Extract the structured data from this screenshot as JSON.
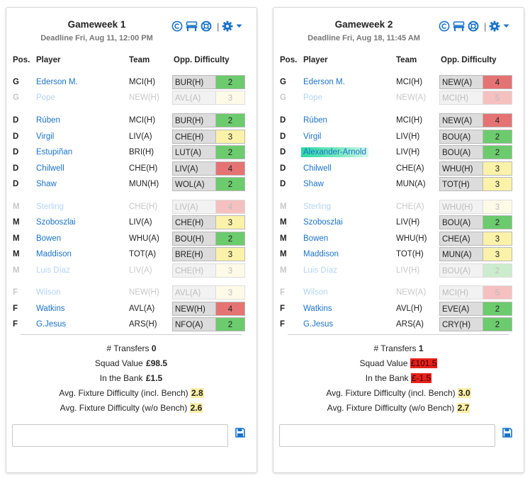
{
  "colors": {
    "accent": "#1a73c9",
    "difficulty": {
      "2": "#6ccb6d",
      "3": "#fbf2a9",
      "4": "#e57373"
    },
    "difficulty_bench": {
      "2": "#cdeccd",
      "3": "#fdfbe7",
      "4": "#f4c0c0"
    },
    "highlight_yellow": "#fbeea6",
    "highlight_red": "#e8221b"
  },
  "icons": [
    "copyright-icon",
    "bench-icon",
    "lifebuoy-icon",
    "gear-icon",
    "caret-down-icon",
    "save-icon"
  ],
  "columns": {
    "pos": "Pos.",
    "player": "Player",
    "team": "Team",
    "opp": "Opp. Difficulty"
  },
  "gameweeks": [
    {
      "title": "Gameweek 1",
      "deadline": "Deadline Fri, Aug 11, 12:00 PM",
      "players": [
        {
          "pos": "G",
          "name": "Ederson M.",
          "team": "MCI(H)",
          "opp": "BUR(H)",
          "diff": 2,
          "bench": false
        },
        {
          "pos": "G",
          "name": "Pope",
          "team": "NEW(H)",
          "opp": "AVL(A)",
          "diff": 3,
          "bench": true
        },
        {
          "pos": "D",
          "name": "Rúben",
          "team": "MCI(H)",
          "opp": "BUR(H)",
          "diff": 2,
          "bench": false
        },
        {
          "pos": "D",
          "name": "Virgil",
          "team": "LIV(A)",
          "opp": "CHE(H)",
          "diff": 3,
          "bench": false
        },
        {
          "pos": "D",
          "name": "Estupiñan",
          "team": "BRI(H)",
          "opp": "LUT(A)",
          "diff": 2,
          "bench": false
        },
        {
          "pos": "D",
          "name": "Chilwell",
          "team": "CHE(H)",
          "opp": "LIV(A)",
          "diff": 4,
          "bench": false
        },
        {
          "pos": "D",
          "name": "Shaw",
          "team": "MUN(H)",
          "opp": "WOL(A)",
          "diff": 2,
          "bench": false
        },
        {
          "pos": "M",
          "name": "Sterling",
          "team": "CHE(H)",
          "opp": "LIV(A)",
          "diff": 4,
          "bench": true
        },
        {
          "pos": "M",
          "name": "Szoboszlai",
          "team": "LIV(A)",
          "opp": "CHE(H)",
          "diff": 3,
          "bench": false
        },
        {
          "pos": "M",
          "name": "Bowen",
          "team": "WHU(A)",
          "opp": "BOU(H)",
          "diff": 2,
          "bench": false
        },
        {
          "pos": "M",
          "name": "Maddison",
          "team": "TOT(A)",
          "opp": "BRE(H)",
          "diff": 3,
          "bench": false
        },
        {
          "pos": "M",
          "name": "Luis Díaz",
          "team": "LIV(A)",
          "opp": "CHE(H)",
          "diff": 3,
          "bench": true
        },
        {
          "pos": "F",
          "name": "Wilson",
          "team": "NEW(H)",
          "opp": "AVL(A)",
          "diff": 3,
          "bench": true
        },
        {
          "pos": "F",
          "name": "Watkins",
          "team": "AVL(A)",
          "opp": "NEW(H)",
          "diff": 4,
          "bench": false
        },
        {
          "pos": "F",
          "name": "G.Jesus",
          "team": "ARS(H)",
          "opp": "NFO(A)",
          "diff": 2,
          "bench": false
        }
      ],
      "transfers_label": "# Transfers",
      "transfers": "0",
      "squad_label": "Squad Value",
      "squad_value": "£98.5",
      "squad_flag": "",
      "bank_label": "In the Bank",
      "bank": "£1.5",
      "bank_flag": "",
      "avg_incl_label": "Avg. Fixture Difficulty (incl. Bench)",
      "avg_incl": "2.8",
      "avg_wo_label": "Avg. Fixture Difficulty (w/o Bench)",
      "avg_wo": "2.6",
      "notes": ""
    },
    {
      "title": "Gameweek 2",
      "deadline": "Deadline Fri, Aug 18, 11:45 AM",
      "players": [
        {
          "pos": "G",
          "name": "Ederson M.",
          "team": "MCI(H)",
          "opp": "NEW(A)",
          "diff": 4,
          "bench": false
        },
        {
          "pos": "G",
          "name": "Pope",
          "team": "NEW(A)",
          "opp": "MCI(H)",
          "diff": 5,
          "bench": true
        },
        {
          "pos": "D",
          "name": "Rúben",
          "team": "MCI(H)",
          "opp": "NEW(A)",
          "diff": 4,
          "bench": false
        },
        {
          "pos": "D",
          "name": "Virgil",
          "team": "LIV(H)",
          "opp": "BOU(A)",
          "diff": 2,
          "bench": false
        },
        {
          "pos": "D",
          "name": "Alexander-Arnold",
          "team": "LIV(H)",
          "opp": "BOU(A)",
          "diff": 2,
          "bench": false,
          "highlight": true
        },
        {
          "pos": "D",
          "name": "Chilwell",
          "team": "CHE(A)",
          "opp": "WHU(H)",
          "diff": 3,
          "bench": false
        },
        {
          "pos": "D",
          "name": "Shaw",
          "team": "MUN(A)",
          "opp": "TOT(H)",
          "diff": 3,
          "bench": false
        },
        {
          "pos": "M",
          "name": "Sterling",
          "team": "CHE(A)",
          "opp": "WHU(H)",
          "diff": 3,
          "bench": true
        },
        {
          "pos": "M",
          "name": "Szoboszlai",
          "team": "LIV(H)",
          "opp": "BOU(A)",
          "diff": 2,
          "bench": false
        },
        {
          "pos": "M",
          "name": "Bowen",
          "team": "WHU(H)",
          "opp": "CHE(A)",
          "diff": 3,
          "bench": false
        },
        {
          "pos": "M",
          "name": "Maddison",
          "team": "TOT(H)",
          "opp": "MUN(A)",
          "diff": 3,
          "bench": false
        },
        {
          "pos": "M",
          "name": "Luis Díaz",
          "team": "LIV(H)",
          "opp": "BOU(A)",
          "diff": 2,
          "bench": true
        },
        {
          "pos": "F",
          "name": "Wilson",
          "team": "NEW(A)",
          "opp": "MCI(H)",
          "diff": 5,
          "bench": true
        },
        {
          "pos": "F",
          "name": "Watkins",
          "team": "AVL(H)",
          "opp": "EVE(A)",
          "diff": 2,
          "bench": false
        },
        {
          "pos": "F",
          "name": "G.Jesus",
          "team": "ARS(A)",
          "opp": "CRY(H)",
          "diff": 2,
          "bench": false
        }
      ],
      "transfers_label": "# Transfers",
      "transfers": "1",
      "squad_label": "Squad Value",
      "squad_value": "£101.5",
      "squad_flag": "red",
      "bank_label": "In the Bank",
      "bank": "£-1.5",
      "bank_flag": "red",
      "avg_incl_label": "Avg. Fixture Difficulty (incl. Bench)",
      "avg_incl": "3.0",
      "avg_wo_label": "Avg. Fixture Difficulty (w/o Bench)",
      "avg_wo": "2.7",
      "notes": ""
    }
  ]
}
